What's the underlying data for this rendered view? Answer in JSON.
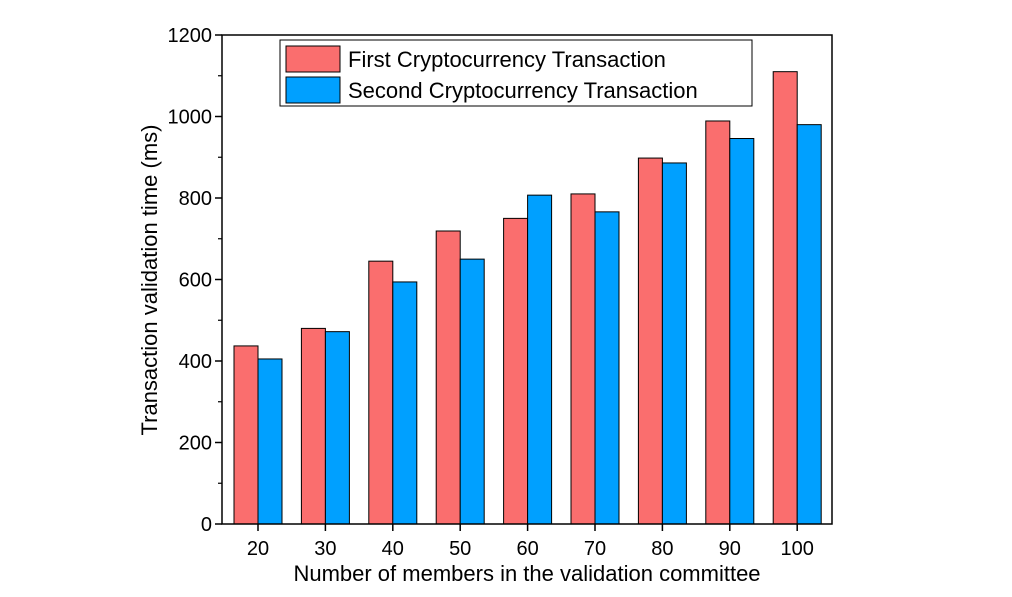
{
  "chart_data": {
    "type": "bar",
    "title": "",
    "xlabel": "Number of members in the validation committee",
    "ylabel": "Transaction validation time (ms)",
    "categories": [
      "20",
      "30",
      "40",
      "50",
      "60",
      "70",
      "80",
      "90",
      "100"
    ],
    "series": [
      {
        "name": "First Cryptocurrency Transaction",
        "color": "#fa6e6e",
        "values": [
          437,
          480,
          645,
          719,
          750,
          810,
          898,
          989,
          1110
        ]
      },
      {
        "name": "Second Cryptocurrency Transaction",
        "color": "#00a0ff",
        "values": [
          405,
          472,
          594,
          650,
          807,
          766,
          886,
          946,
          980
        ]
      }
    ],
    "ylim": [
      0,
      1200
    ],
    "yticks": [
      "0",
      "200",
      "400",
      "600",
      "800",
      "1000",
      "1200"
    ],
    "grid": false,
    "legend_position": "top-center"
  }
}
